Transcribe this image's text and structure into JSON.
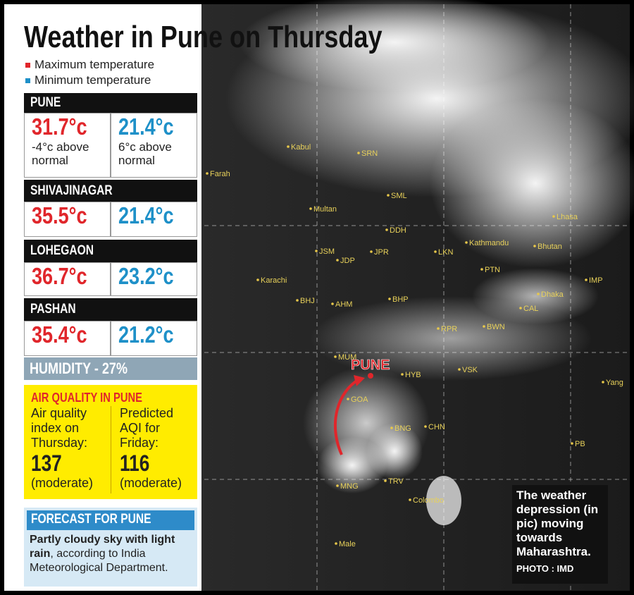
{
  "header": {
    "title": "Weather in Pune on Thursday"
  },
  "legend": [
    {
      "label": "Maximum temperature",
      "color": "#e0262b"
    },
    {
      "label": "Minimum temperature",
      "color": "#1e90c8"
    }
  ],
  "stations": [
    {
      "name": "PUNE",
      "max": "31.7°c",
      "max_note": "-4°c above normal",
      "min": "21.4°c",
      "min_note": "6°c above normal"
    },
    {
      "name": "SHIVAJINAGAR",
      "max": "35.5°c",
      "min": "21.4°c"
    },
    {
      "name": "LOHEGAON",
      "max": "36.7°c",
      "min": "23.2°c"
    },
    {
      "name": "PASHAN",
      "max": "35.4°c",
      "min": "21.2°c"
    }
  ],
  "humidity": "HUMIDITY - 27%",
  "air_quality": {
    "title": "AIR QUALITY IN PUNE",
    "items": [
      {
        "label": "Air quality index on Thursday:",
        "value": 137,
        "note": "(moderate)"
      },
      {
        "label": "Predicted AQI for Friday:",
        "value": 116,
        "note": "(moderate)"
      }
    ]
  },
  "forecast": {
    "title": "FORECAST FOR PUNE",
    "text_bold": "Partly cloudy sky with light rain",
    "text": ", according to India Meteorological Department."
  },
  "map": {
    "pune_label": "PUNE",
    "labels": [
      "Kabul",
      "SRN",
      "Farah",
      "SML",
      "Multan",
      "DDH",
      "Kathmandu",
      "Bhutan",
      "Lhasa",
      "LKN",
      "Karachi",
      "JSM",
      "JDP",
      "JPR",
      "PTN",
      "IMP",
      "Dhaka",
      "BHJ",
      "AHM",
      "BHP",
      "CAL",
      "RPR",
      "BWN",
      "MUM",
      "HYB",
      "VSK",
      "Yang",
      "GOA",
      "CHN",
      "BNG",
      "PB",
      "MNG",
      "TRV",
      "Colombo",
      "Male"
    ]
  },
  "caption": {
    "text": "The weather depression (in pic) moving towards Maharashtra.",
    "credit": "PHOTO : IMD"
  }
}
